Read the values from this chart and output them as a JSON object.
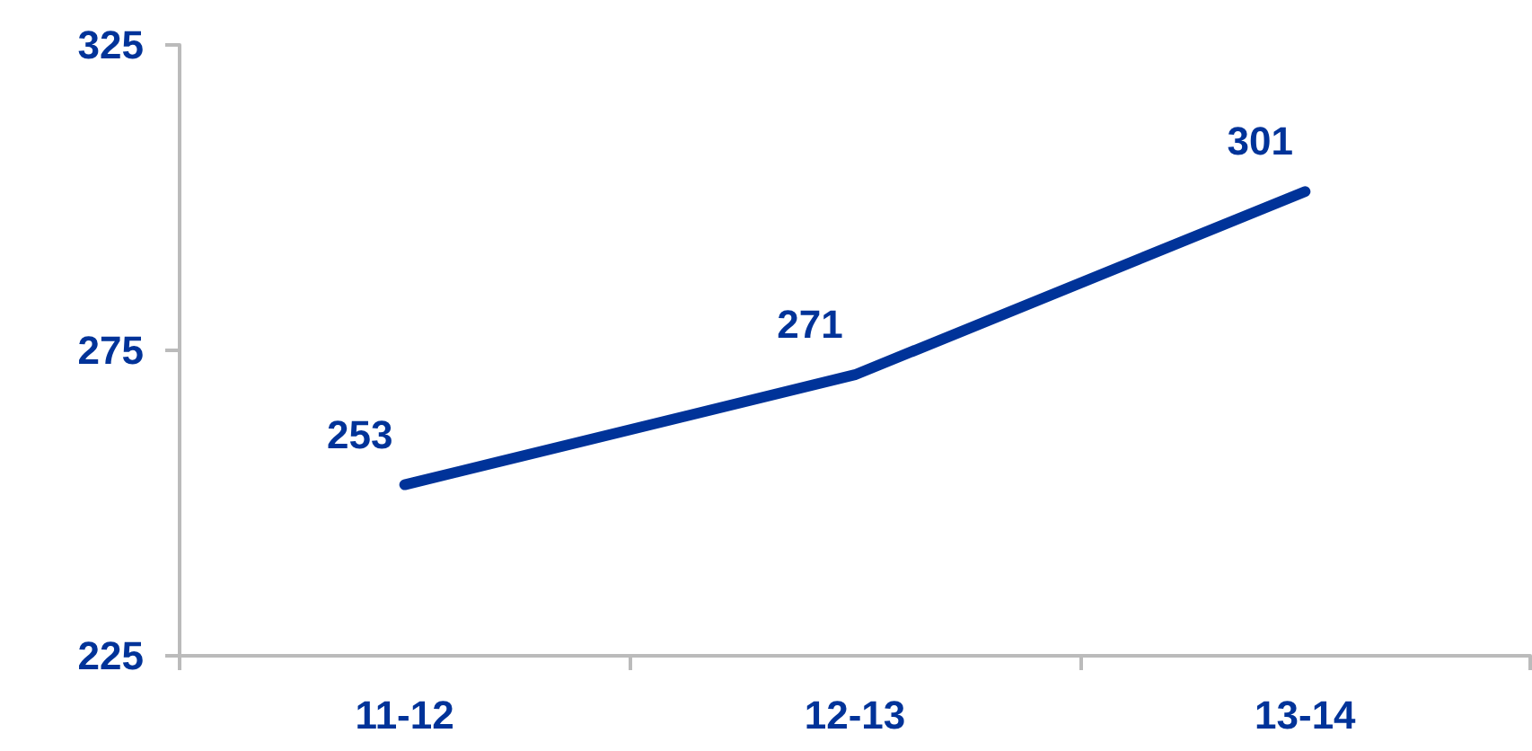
{
  "chart_data": {
    "type": "line",
    "categories": [
      "11-12",
      "12-13",
      "13-14"
    ],
    "series": [
      {
        "color": "#003399",
        "values": [
          253,
          271,
          301
        ]
      }
    ],
    "ylim": [
      225,
      325
    ],
    "yticks": [
      225,
      275,
      325
    ],
    "grid": false,
    "marker": "none",
    "line_style": "solid",
    "data_labels": true
  }
}
